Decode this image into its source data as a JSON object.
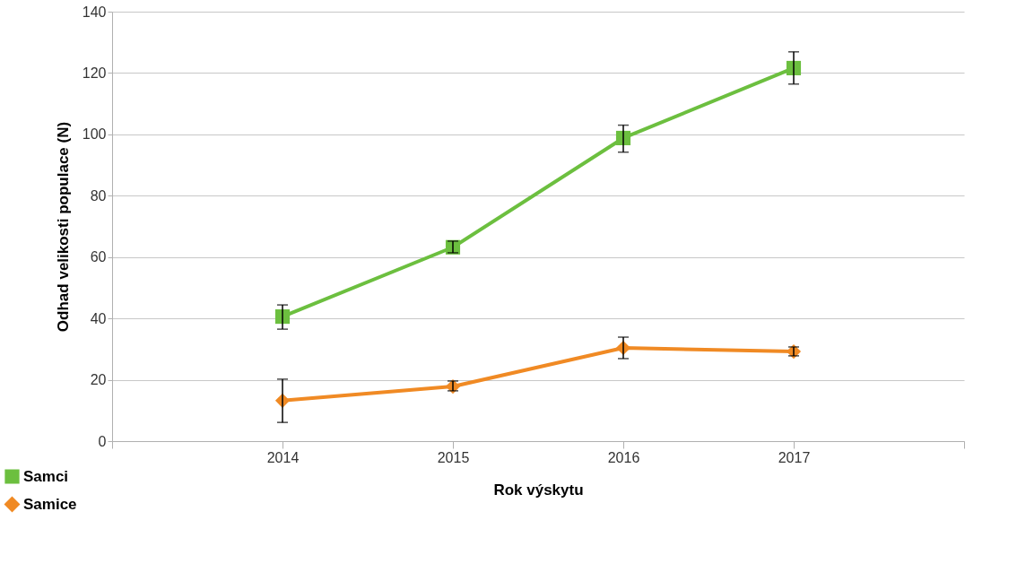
{
  "chart_data": {
    "type": "line",
    "xlabel": "Rok výskytu",
    "ylabel": "Odhad velikosti populace (N)",
    "x": [
      2014,
      2015,
      2016,
      2017
    ],
    "xlim": [
      2013,
      2018
    ],
    "xticks": [
      {
        "value": 2013,
        "label": null
      },
      2014,
      2015,
      2016,
      2017,
      {
        "value": 2018,
        "label": null
      }
    ],
    "ylim": [
      0,
      140
    ],
    "yticks": [
      0,
      20,
      40,
      60,
      80,
      100,
      120,
      140
    ],
    "grid": "y",
    "legend": "bottom left",
    "line_style": "solid",
    "series": [
      {
        "name": "Samci",
        "color": "#6cbf3f",
        "marker": "square",
        "values": [
          40.6,
          63.2,
          98.8,
          121.6
        ],
        "errors": [
          [
            36.5,
            44.4
          ],
          [
            61.4,
            65.2
          ],
          [
            94.2,
            103.0
          ],
          [
            116.4,
            126.9
          ]
        ]
      },
      {
        "name": "Samice",
        "color": "#f08a24",
        "marker": "diamond",
        "values": [
          13.2,
          17.8,
          30.4,
          29.2
        ],
        "errors": [
          [
            6.1,
            20.2
          ],
          [
            16.4,
            19.6
          ],
          [
            26.9,
            33.9
          ],
          [
            27.8,
            30.7
          ]
        ]
      }
    ]
  }
}
